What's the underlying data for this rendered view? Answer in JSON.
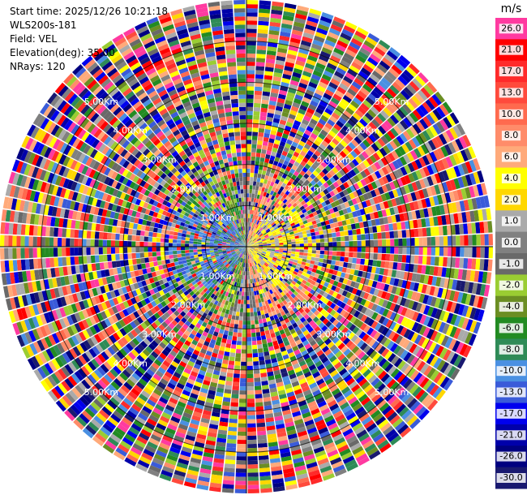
{
  "header": {
    "start_time": "Start time: 2025/12/26 10:21:18",
    "instrument": "WLS200s-181",
    "field": "Field: VEL",
    "elevation": "Elevation(deg): 35.00",
    "nrays": "NRays: 120"
  },
  "chart_data": {
    "type": "heatmap",
    "projection": "polar PPI",
    "field": "VEL",
    "n_rays": 120,
    "elevation_deg": 35.0,
    "range_rings": [
      "1.00Km",
      "2.00Km",
      "3.00Km",
      "4.00Km",
      "5.00Km"
    ],
    "range_rings_km": [
      1,
      2,
      3,
      4,
      5
    ],
    "max_range_km": 6.0,
    "colorbar": {
      "unit": "m/s",
      "tick_labels": [
        "26.0",
        "21.0",
        "17.0",
        "13.0",
        "10.0",
        "8.0",
        "6.0",
        "4.0",
        "2.0",
        "1.0",
        "0.0",
        "-1.0",
        "-2.0",
        "-4.0",
        "-6.0",
        "-8.0",
        "-10.0",
        "-13.0",
        "-17.0",
        "-21.0",
        "-26.0",
        "-30.0"
      ],
      "colors": [
        "#ff3aa0",
        "#ff0000",
        "#ff2a2a",
        "#ff4a3c",
        "#ff6a4e",
        "#ff8c6a",
        "#ffaa7a",
        "#ffff00",
        "#ffd700",
        "#aaaaaa",
        "#808080",
        "#696969",
        "#9acd32",
        "#6b8e23",
        "#228b22",
        "#2e8b57",
        "#4a90e2",
        "#3a5bd9",
        "#0000ee",
        "#0000aa",
        "#000080",
        "#191970"
      ]
    }
  }
}
